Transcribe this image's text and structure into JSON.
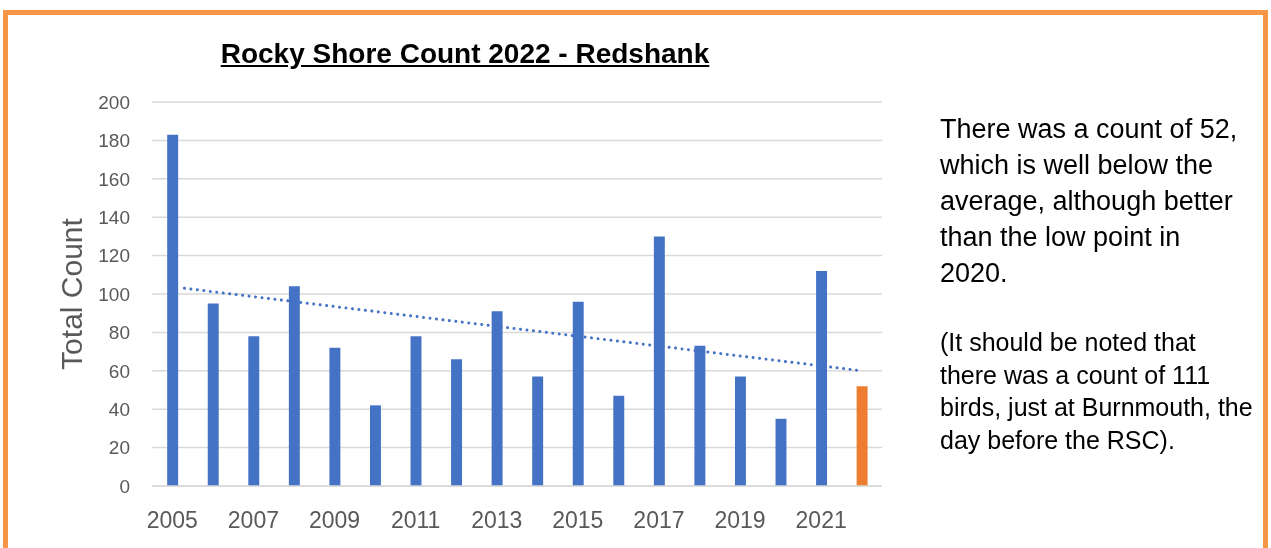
{
  "chart_data": {
    "type": "bar",
    "title": "Rocky Shore Count 2022 - Redshank",
    "ylabel": "Total Count",
    "x": [
      2005,
      2006,
      2007,
      2008,
      2009,
      2010,
      2011,
      2012,
      2013,
      2014,
      2015,
      2016,
      2017,
      2018,
      2019,
      2020,
      2021,
      2022
    ],
    "series": [
      {
        "colors": [
          "#4472c4",
          "#4472c4",
          "#4472c4",
          "#4472c4",
          "#4472c4",
          "#4472c4",
          "#4472c4",
          "#4472c4",
          "#4472c4",
          "#4472c4",
          "#4472c4",
          "#4472c4",
          "#4472c4",
          "#4472c4",
          "#4472c4",
          "#4472c4",
          "#4472c4",
          "#ed7d31"
        ],
        "values": [
          183,
          95,
          78,
          104,
          72,
          42,
          78,
          66,
          91,
          57,
          96,
          47,
          130,
          73,
          57,
          35,
          112,
          52
        ]
      },
      {
        "type": "line",
        "color": "#4472c4",
        "line_style": "dotted",
        "x": [
          2005.3,
          2022
        ],
        "values": [
          103,
          60
        ]
      }
    ],
    "xlim": [
      2004.5,
      2022.5
    ],
    "xticks": [
      2005,
      2007,
      2009,
      2011,
      2013,
      2015,
      2017,
      2019,
      2021
    ],
    "ylim": [
      0,
      200
    ],
    "yticks": [
      0,
      20,
      40,
      60,
      80,
      100,
      120,
      140,
      160,
      180,
      200
    ],
    "grid": "y",
    "annotations": [
      "There was a count of 52, which is well below the average, although better than the low point in 2020.",
      "(It should be noted that there was a count of 111 birds, just at Burnmouth, the day before the RSC)."
    ]
  }
}
